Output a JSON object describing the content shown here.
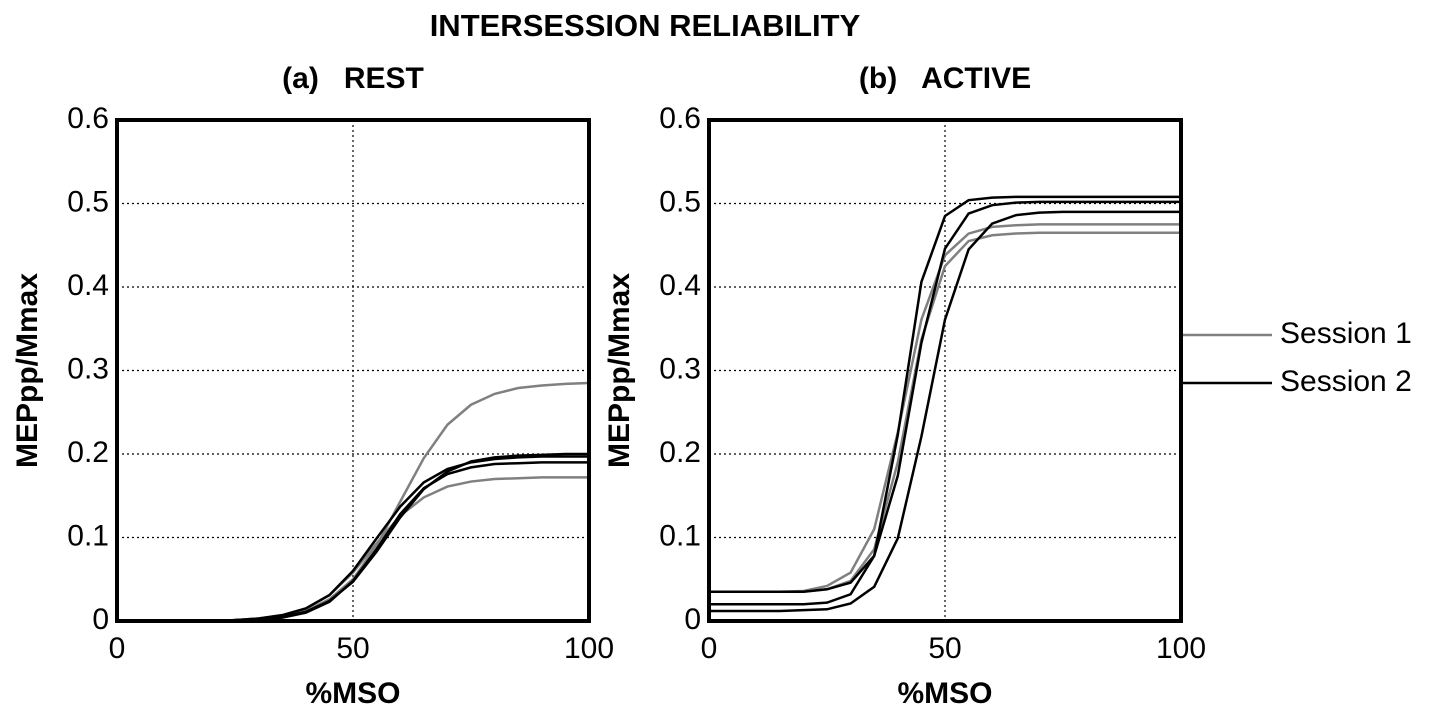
{
  "title": "INTERSESSION RELIABILITY",
  "chart_data": [
    {
      "type": "line",
      "title": "(a)   REST",
      "xlabel": "%MSO",
      "ylabel": "MEPpp/Mmax",
      "xlim": [
        0,
        100
      ],
      "ylim": [
        0,
        0.6
      ],
      "xticks": [
        0,
        50,
        100
      ],
      "yticks": [
        0,
        0.1,
        0.2,
        0.3,
        0.4,
        0.5,
        0.6
      ],
      "grid": true,
      "x": [
        0,
        5,
        10,
        15,
        20,
        25,
        30,
        35,
        40,
        45,
        50,
        55,
        60,
        65,
        70,
        75,
        80,
        85,
        90,
        95,
        100
      ],
      "series": [
        {
          "color": "#808080",
          "values": [
            0,
            0,
            0,
            0,
            0,
            0.001,
            0.003,
            0.006,
            0.012,
            0.026,
            0.05,
            0.09,
            0.143,
            0.195,
            0.235,
            0.259,
            0.272,
            0.279,
            0.282,
            0.284,
            0.285
          ]
        },
        {
          "color": "#808080",
          "values": [
            0,
            0,
            0,
            0,
            0,
            0.001,
            0.003,
            0.007,
            0.015,
            0.031,
            0.058,
            0.093,
            0.126,
            0.148,
            0.161,
            0.167,
            0.17,
            0.171,
            0.172,
            0.172,
            0.172
          ]
        },
        {
          "color": "#000000",
          "values": [
            0,
            0,
            0,
            0,
            0,
            0.001,
            0.002,
            0.005,
            0.011,
            0.024,
            0.047,
            0.083,
            0.124,
            0.158,
            0.179,
            0.191,
            0.196,
            0.198,
            0.199,
            0.2,
            0.2
          ]
        },
        {
          "color": "#000000",
          "values": [
            0,
            0,
            0,
            0,
            0,
            0.001,
            0.002,
            0.004,
            0.01,
            0.023,
            0.048,
            0.086,
            0.128,
            0.159,
            0.176,
            0.184,
            0.188,
            0.189,
            0.19,
            0.19,
            0.19
          ]
        },
        {
          "color": "#000000",
          "values": [
            0,
            0,
            0,
            0,
            0,
            0.001,
            0.003,
            0.007,
            0.015,
            0.031,
            0.06,
            0.099,
            0.137,
            0.166,
            0.182,
            0.19,
            0.194,
            0.196,
            0.197,
            0.197,
            0.197
          ]
        }
      ]
    },
    {
      "type": "line",
      "title": "(b)   ACTIVE",
      "xlabel": "%MSO",
      "ylabel": "MEPpp/Mmax",
      "xlim": [
        0,
        100
      ],
      "ylim": [
        0,
        0.6
      ],
      "xticks": [
        0,
        50,
        100
      ],
      "yticks": [
        0,
        0.1,
        0.2,
        0.3,
        0.4,
        0.5,
        0.6
      ],
      "grid": true,
      "x": [
        0,
        5,
        10,
        15,
        20,
        25,
        30,
        35,
        40,
        45,
        50,
        55,
        60,
        65,
        70,
        75,
        80,
        85,
        90,
        95,
        100
      ],
      "series": [
        {
          "color": "#808080",
          "values": [
            0.035,
            0.035,
            0.035,
            0.035,
            0.035,
            0.038,
            0.048,
            0.086,
            0.19,
            0.337,
            0.425,
            0.455,
            0.462,
            0.464,
            0.465,
            0.465,
            0.465,
            0.465,
            0.465,
            0.465,
            0.465
          ]
        },
        {
          "color": "#808080",
          "values": [
            0.035,
            0.035,
            0.035,
            0.035,
            0.036,
            0.042,
            0.058,
            0.11,
            0.226,
            0.361,
            0.438,
            0.464,
            0.472,
            0.474,
            0.475,
            0.475,
            0.475,
            0.475,
            0.475,
            0.475,
            0.475
          ]
        },
        {
          "color": "#000000",
          "values": [
            0.02,
            0.02,
            0.02,
            0.02,
            0.02,
            0.022,
            0.032,
            0.078,
            0.223,
            0.406,
            0.485,
            0.504,
            0.507,
            0.508,
            0.508,
            0.508,
            0.508,
            0.508,
            0.508,
            0.508,
            0.508
          ]
        },
        {
          "color": "#000000",
          "values": [
            0.012,
            0.012,
            0.012,
            0.012,
            0.013,
            0.014,
            0.021,
            0.041,
            0.099,
            0.221,
            0.361,
            0.445,
            0.476,
            0.486,
            0.489,
            0.49,
            0.49,
            0.49,
            0.49,
            0.49,
            0.49
          ]
        },
        {
          "color": "#000000",
          "values": [
            0.035,
            0.035,
            0.035,
            0.035,
            0.035,
            0.038,
            0.046,
            0.078,
            0.174,
            0.333,
            0.446,
            0.488,
            0.498,
            0.501,
            0.502,
            0.502,
            0.502,
            0.502,
            0.502,
            0.502,
            0.502
          ]
        }
      ],
      "legend": [
        {
          "name": "Session 1",
          "color": "#808080"
        },
        {
          "name": "Session 2",
          "color": "#000000"
        }
      ]
    }
  ]
}
